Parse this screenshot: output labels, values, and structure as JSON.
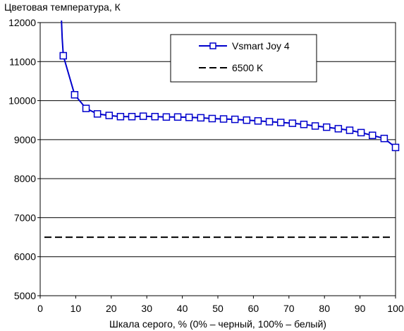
{
  "chart_data": {
    "type": "line",
    "title": "",
    "ylabel": "Цветовая температура, К",
    "xlabel": "Шкала серого, % (0% – черный, 100% – белый)",
    "xlim": [
      0,
      100
    ],
    "ylim": [
      5000,
      12000
    ],
    "x_ticks": [
      0,
      10,
      20,
      30,
      40,
      50,
      60,
      70,
      80,
      90,
      100
    ],
    "y_ticks": [
      5000,
      6000,
      7000,
      8000,
      9000,
      10000,
      11000,
      12000
    ],
    "grid": "horizontal",
    "legend_position": "top-right",
    "series": [
      {
        "name": "Vsmart Joy 4",
        "color": "#0000cc",
        "marker": "square",
        "line_only_head": [
          [
            6.0,
            12050
          ],
          [
            6.2,
            11600
          ]
        ],
        "x": [
          6.5,
          9.7,
          12.9,
          16.1,
          19.4,
          22.6,
          25.8,
          29.0,
          32.3,
          35.5,
          38.7,
          41.9,
          45.2,
          48.4,
          51.6,
          54.8,
          58.1,
          61.3,
          64.5,
          67.7,
          71.0,
          74.2,
          77.4,
          80.6,
          83.9,
          87.1,
          90.3,
          93.5,
          96.8,
          100.0
        ],
        "values": [
          11150,
          10150,
          9800,
          9660,
          9620,
          9590,
          9590,
          9600,
          9590,
          9580,
          9580,
          9570,
          9560,
          9540,
          9530,
          9520,
          9500,
          9480,
          9460,
          9440,
          9420,
          9390,
          9350,
          9320,
          9280,
          9240,
          9180,
          9110,
          9030,
          8800
        ]
      },
      {
        "name": "6500 K",
        "color": "#000000",
        "style": "dashed",
        "x": [
          0,
          100
        ],
        "values": [
          6500,
          6500
        ]
      }
    ]
  }
}
